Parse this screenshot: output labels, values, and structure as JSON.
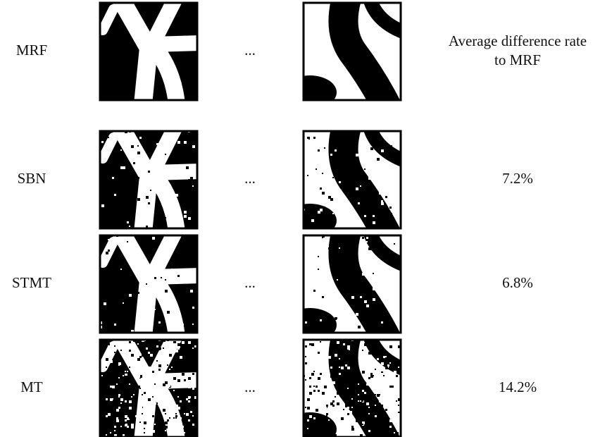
{
  "header": {
    "title": "Average difference rate to MRF"
  },
  "rows": [
    {
      "label": "MRF",
      "ellipsis": "..."
    },
    {
      "label": "SBN",
      "ellipsis": "...",
      "rate": "7.2%"
    },
    {
      "label": "STMT",
      "ellipsis": "...",
      "rate": "6.8%"
    },
    {
      "label": "MT",
      "ellipsis": "...",
      "rate": "14.2%"
    }
  ]
}
